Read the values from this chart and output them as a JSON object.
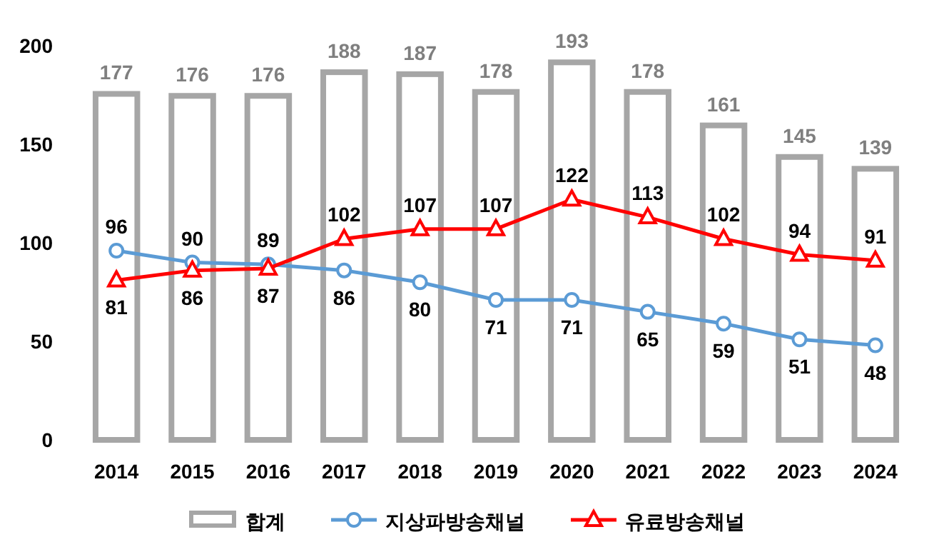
{
  "chart_data": {
    "type": "bar",
    "categories": [
      "2014",
      "2015",
      "2016",
      "2017",
      "2018",
      "2019",
      "2020",
      "2021",
      "2022",
      "2023",
      "2024"
    ],
    "series": [
      {
        "name": "합계",
        "color": "#a6a6a6",
        "values": [
          177,
          176,
          176,
          188,
          187,
          178,
          193,
          178,
          161,
          145,
          139
        ]
      },
      {
        "name": "지상파방송채널",
        "type": "line",
        "color": "#5b9bd5",
        "marker": "circle",
        "values": [
          96,
          90,
          89,
          86,
          80,
          71,
          71,
          65,
          59,
          51,
          48
        ]
      },
      {
        "name": "유료방송채널",
        "type": "line",
        "color": "#ff0000",
        "marker": "triangle",
        "values": [
          81,
          86,
          87,
          102,
          107,
          107,
          122,
          113,
          102,
          94,
          91
        ]
      }
    ],
    "ylim": [
      0,
      200
    ],
    "yticks": [
      0,
      50,
      100,
      150,
      200
    ],
    "data_labels": true,
    "legend": "bottom",
    "grid": false
  }
}
